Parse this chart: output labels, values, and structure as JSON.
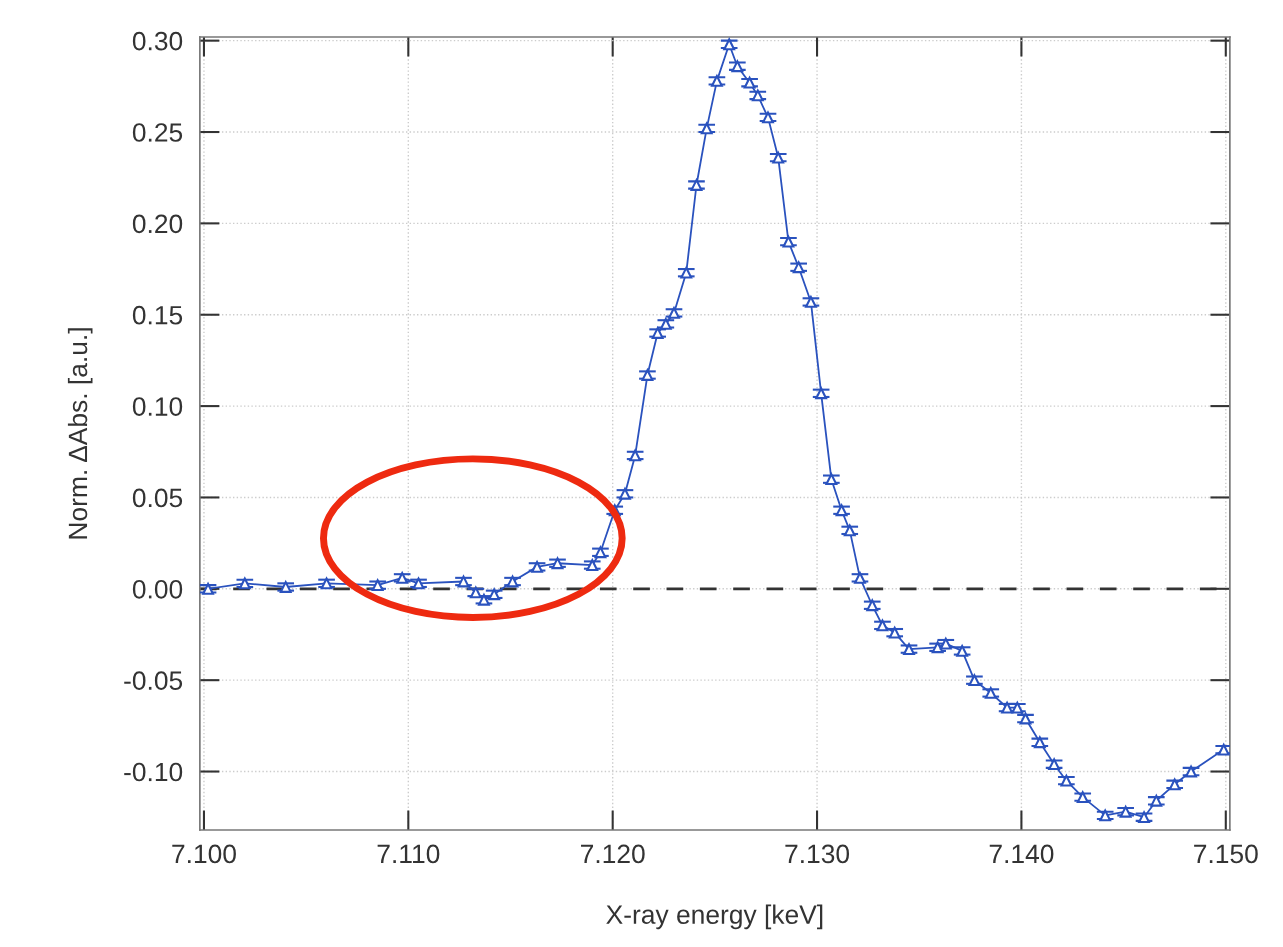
{
  "chart_data": {
    "type": "line",
    "xlabel": "X-ray energy [keV]",
    "ylabel": "Norm. ΔAbs. [a.u.]",
    "xlim": [
      7.0998,
      7.1502
    ],
    "ylim": [
      -0.132,
      0.302
    ],
    "xticks": [
      {
        "value": 7.1,
        "label": "7.100"
      },
      {
        "value": 7.11,
        "label": "7.110"
      },
      {
        "value": 7.12,
        "label": "7.120"
      },
      {
        "value": 7.13,
        "label": "7.130"
      },
      {
        "value": 7.14,
        "label": "7.140"
      },
      {
        "value": 7.15,
        "label": "7.150"
      }
    ],
    "yticks": [
      {
        "value": -0.1,
        "label": "-0.10"
      },
      {
        "value": -0.05,
        "label": "-0.05"
      },
      {
        "value": 0,
        "label": "0.00"
      },
      {
        "value": 0.05,
        "label": "0.05"
      },
      {
        "value": 0.1,
        "label": "0.10"
      },
      {
        "value": 0.15,
        "label": "0.15"
      },
      {
        "value": 0.2,
        "label": "0.20"
      },
      {
        "value": 0.25,
        "label": "0.25"
      },
      {
        "value": 0.3,
        "label": "0.30"
      }
    ],
    "grid": true,
    "marker": "triangle",
    "line_style": "solid",
    "ref_lines": [
      {
        "axis": "y",
        "value": 0,
        "color": "#333333",
        "line_style": "dashed"
      }
    ],
    "series": [
      {
        "color": "#2a52be",
        "x": [
          7.1002,
          7.102,
          7.104,
          7.106,
          7.1085,
          7.1097,
          7.1105,
          7.1127,
          7.1133,
          7.1137,
          7.1142,
          7.1151,
          7.1163,
          7.1173,
          7.119,
          7.1194,
          7.1201,
          7.1206,
          7.1211,
          7.1217,
          7.1222,
          7.1226,
          7.123,
          7.1236,
          7.1241,
          7.1246,
          7.1251,
          7.1257,
          7.1261,
          7.1267,
          7.1271,
          7.1276,
          7.1281,
          7.1286,
          7.1291,
          7.1297,
          7.1302,
          7.1307,
          7.1312,
          7.1316,
          7.1321,
          7.1327,
          7.1332,
          7.1338,
          7.1345,
          7.1359,
          7.1363,
          7.1371,
          7.1377,
          7.1385,
          7.1393,
          7.1398,
          7.1402,
          7.1409,
          7.1416,
          7.1422,
          7.143,
          7.1441,
          7.1451,
          7.146,
          7.1466,
          7.1475,
          7.1483,
          7.1499
        ],
        "values": [
          0.0,
          0.003,
          0.001,
          0.003,
          0.002,
          0.006,
          0.003,
          0.004,
          -0.002,
          -0.006,
          -0.003,
          0.004,
          0.012,
          0.014,
          0.013,
          0.02,
          0.043,
          0.052,
          0.073,
          0.117,
          0.14,
          0.145,
          0.151,
          0.173,
          0.221,
          0.252,
          0.278,
          0.298,
          0.286,
          0.277,
          0.27,
          0.258,
          0.236,
          0.19,
          0.176,
          0.157,
          0.107,
          0.06,
          0.043,
          0.032,
          0.006,
          -0.009,
          -0.02,
          -0.024,
          -0.033,
          -0.032,
          -0.03,
          -0.034,
          -0.05,
          -0.057,
          -0.065,
          -0.065,
          -0.071,
          -0.084,
          -0.096,
          -0.105,
          -0.114,
          -0.124,
          -0.122,
          -0.125,
          -0.116,
          -0.107,
          -0.1,
          -0.088
        ],
        "errors": [
          0.002,
          0.002,
          0.002,
          0.002,
          0.002,
          0.002,
          0.002,
          0.002,
          0.002,
          0.002,
          0.002,
          0.002,
          0.002,
          0.002,
          0.002,
          0.002,
          0.002,
          0.002,
          0.002,
          0.002,
          0.002,
          0.002,
          0.002,
          0.002,
          0.002,
          0.002,
          0.002,
          0.002,
          0.002,
          0.002,
          0.002,
          0.002,
          0.002,
          0.002,
          0.002,
          0.002,
          0.002,
          0.002,
          0.002,
          0.002,
          0.002,
          0.002,
          0.002,
          0.002,
          0.002,
          0.002,
          0.002,
          0.002,
          0.002,
          0.002,
          0.002,
          0.002,
          0.002,
          0.002,
          0.002,
          0.002,
          0.002,
          0.002,
          0.002,
          0.002,
          0.002,
          0.002,
          0.002,
          0.002
        ]
      }
    ]
  }
}
